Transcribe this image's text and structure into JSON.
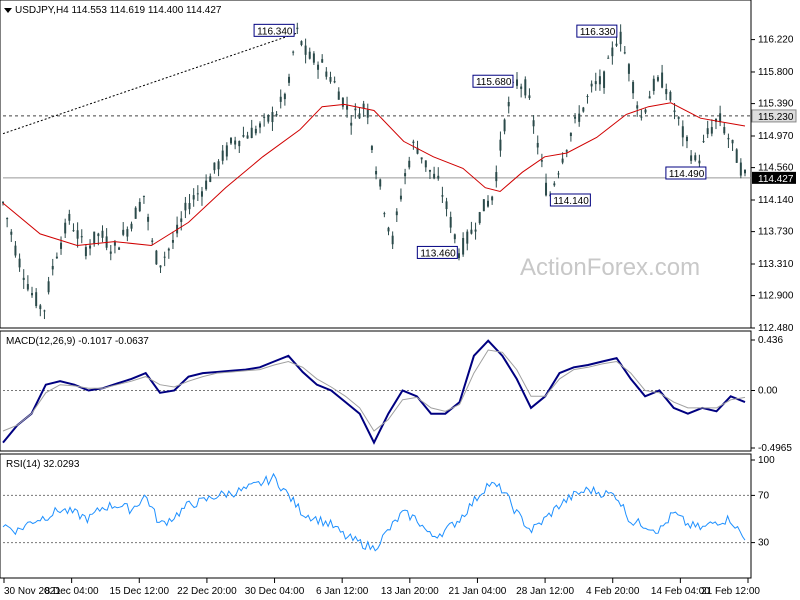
{
  "header": {
    "symbol_line": "USDJPY,H4  114.553 114.619 114.400 114.427"
  },
  "watermark": "ActionForex.com",
  "colors": {
    "candle": "#2b4a4a",
    "ma": "#d00000",
    "macd": "#000080",
    "signal": "#a0a0a0",
    "rsi": "#1e90ff",
    "dash": "#444444",
    "grid_label_box": "#000080"
  },
  "chart_data": [
    {
      "type": "candlestick",
      "panel": "price",
      "y_ticks": [
        116.22,
        115.8,
        115.39,
        114.97,
        114.56,
        114.14,
        113.73,
        113.31,
        112.9,
        112.48
      ],
      "ylim": [
        112.48,
        116.5
      ],
      "current_price_label": "114.427",
      "level_label": "115.230",
      "level": 115.23,
      "current_price": 114.427,
      "price_path": [
        {
          "t": 0.0,
          "p": 114.1
        },
        {
          "t": 0.02,
          "p": 113.4
        },
        {
          "t": 0.04,
          "p": 112.9
        },
        {
          "t": 0.055,
          "p": 112.7
        },
        {
          "t": 0.07,
          "p": 113.4
        },
        {
          "t": 0.09,
          "p": 113.9
        },
        {
          "t": 0.11,
          "p": 113.5
        },
        {
          "t": 0.13,
          "p": 113.7
        },
        {
          "t": 0.15,
          "p": 113.5
        },
        {
          "t": 0.17,
          "p": 113.8
        },
        {
          "t": 0.19,
          "p": 114.2
        },
        {
          "t": 0.2,
          "p": 113.6
        },
        {
          "t": 0.21,
          "p": 113.3
        },
        {
          "t": 0.23,
          "p": 113.6
        },
        {
          "t": 0.25,
          "p": 114.1
        },
        {
          "t": 0.27,
          "p": 114.3
        },
        {
          "t": 0.29,
          "p": 114.6
        },
        {
          "t": 0.31,
          "p": 114.9
        },
        {
          "t": 0.33,
          "p": 115.0
        },
        {
          "t": 0.35,
          "p": 115.1
        },
        {
          "t": 0.37,
          "p": 115.3
        },
        {
          "t": 0.385,
          "p": 115.6
        },
        {
          "t": 0.395,
          "p": 116.34
        },
        {
          "t": 0.41,
          "p": 116.0
        },
        {
          "t": 0.43,
          "p": 115.9
        },
        {
          "t": 0.45,
          "p": 115.6
        },
        {
          "t": 0.47,
          "p": 115.2
        },
        {
          "t": 0.49,
          "p": 115.4
        },
        {
          "t": 0.5,
          "p": 114.7
        },
        {
          "t": 0.515,
          "p": 114.0
        },
        {
          "t": 0.525,
          "p": 113.6
        },
        {
          "t": 0.54,
          "p": 114.4
        },
        {
          "t": 0.555,
          "p": 114.9
        },
        {
          "t": 0.57,
          "p": 114.6
        },
        {
          "t": 0.59,
          "p": 114.3
        },
        {
          "t": 0.605,
          "p": 113.8
        },
        {
          "t": 0.615,
          "p": 113.46
        },
        {
          "t": 0.63,
          "p": 113.7
        },
        {
          "t": 0.645,
          "p": 114.0
        },
        {
          "t": 0.66,
          "p": 114.2
        },
        {
          "t": 0.675,
          "p": 115.1
        },
        {
          "t": 0.69,
          "p": 115.68
        },
        {
          "t": 0.705,
          "p": 115.6
        },
        {
          "t": 0.72,
          "p": 114.9
        },
        {
          "t": 0.735,
          "p": 114.14
        },
        {
          "t": 0.75,
          "p": 114.6
        },
        {
          "t": 0.765,
          "p": 115.0
        },
        {
          "t": 0.78,
          "p": 115.3
        },
        {
          "t": 0.795,
          "p": 115.6
        },
        {
          "t": 0.81,
          "p": 115.7
        },
        {
          "t": 0.83,
          "p": 116.33
        },
        {
          "t": 0.845,
          "p": 115.8
        },
        {
          "t": 0.86,
          "p": 115.2
        },
        {
          "t": 0.875,
          "p": 115.6
        },
        {
          "t": 0.89,
          "p": 115.7
        },
        {
          "t": 0.905,
          "p": 115.3
        },
        {
          "t": 0.92,
          "p": 114.9
        },
        {
          "t": 0.935,
          "p": 114.6
        },
        {
          "t": 0.95,
          "p": 115.0
        },
        {
          "t": 0.965,
          "p": 115.2
        },
        {
          "t": 0.98,
          "p": 114.9
        },
        {
          "t": 1.0,
          "p": 114.43
        }
      ],
      "ma_path": [
        {
          "t": 0.0,
          "p": 114.1
        },
        {
          "t": 0.05,
          "p": 113.7
        },
        {
          "t": 0.1,
          "p": 113.55
        },
        {
          "t": 0.15,
          "p": 113.6
        },
        {
          "t": 0.2,
          "p": 113.55
        },
        {
          "t": 0.25,
          "p": 113.85
        },
        {
          "t": 0.3,
          "p": 114.3
        },
        {
          "t": 0.35,
          "p": 114.7
        },
        {
          "t": 0.4,
          "p": 115.05
        },
        {
          "t": 0.43,
          "p": 115.35
        },
        {
          "t": 0.46,
          "p": 115.38
        },
        {
          "t": 0.5,
          "p": 115.3
        },
        {
          "t": 0.54,
          "p": 114.9
        },
        {
          "t": 0.58,
          "p": 114.7
        },
        {
          "t": 0.62,
          "p": 114.55
        },
        {
          "t": 0.65,
          "p": 114.3
        },
        {
          "t": 0.67,
          "p": 114.25
        },
        {
          "t": 0.7,
          "p": 114.5
        },
        {
          "t": 0.73,
          "p": 114.7
        },
        {
          "t": 0.76,
          "p": 114.75
        },
        {
          "t": 0.8,
          "p": 114.95
        },
        {
          "t": 0.84,
          "p": 115.25
        },
        {
          "t": 0.87,
          "p": 115.35
        },
        {
          "t": 0.9,
          "p": 115.4
        },
        {
          "t": 0.94,
          "p": 115.2
        },
        {
          "t": 0.97,
          "p": 115.15
        },
        {
          "t": 1.0,
          "p": 115.1
        }
      ],
      "annotations": [
        {
          "label": "116.340",
          "t": 0.395,
          "p": 116.34,
          "side": "left"
        },
        {
          "label": "115.680",
          "t": 0.69,
          "p": 115.68,
          "side": "left"
        },
        {
          "label": "116.330",
          "t": 0.83,
          "p": 116.33,
          "side": "left"
        },
        {
          "label": "113.460",
          "t": 0.615,
          "p": 113.46,
          "side": "left"
        },
        {
          "label": "114.140",
          "t": 0.735,
          "p": 114.14,
          "side": "right"
        },
        {
          "label": "114.490",
          "t": 0.95,
          "p": 114.49,
          "side": "left"
        }
      ],
      "x_ticks": [
        "30 Nov 2021",
        "8 Dec 04:00",
        "15 Dec 12:00",
        "22 Dec 20:00",
        "30 Dec 04:00",
        "6 Jan 12:00",
        "13 Jan 20:00",
        "21 Jan 04:00",
        "28 Jan 12:00",
        "4 Feb 20:00",
        "14 Feb 04:00",
        "21 Feb 12:00"
      ]
    },
    {
      "type": "line",
      "panel": "macd",
      "title": "MACD(12,26,9) -0.1017 -0.0637",
      "y_ticks": [
        "0.436",
        "0.00",
        "-0.4965"
      ],
      "ylim": [
        -0.4965,
        0.436
      ],
      "series": [
        {
          "name": "MACD",
          "values": [
            -0.45,
            -0.3,
            -0.2,
            0.05,
            0.08,
            0.05,
            0.0,
            0.02,
            0.06,
            0.1,
            0.15,
            -0.02,
            0.0,
            0.12,
            0.15,
            0.16,
            0.17,
            0.18,
            0.2,
            0.25,
            0.3,
            0.16,
            0.05,
            0.0,
            -0.1,
            -0.2,
            -0.45,
            -0.2,
            0.0,
            -0.05,
            -0.2,
            -0.2,
            -0.1,
            0.3,
            0.43,
            0.3,
            0.1,
            -0.15,
            -0.05,
            0.15,
            0.2,
            0.22,
            0.25,
            0.28,
            0.1,
            -0.05,
            0.0,
            -0.15,
            -0.2,
            -0.15,
            -0.18,
            -0.05,
            -0.1
          ]
        },
        {
          "name": "Signal",
          "values": [
            -0.35,
            -0.3,
            -0.2,
            -0.02,
            0.05,
            0.04,
            0.02,
            0.02,
            0.05,
            0.08,
            0.12,
            0.05,
            0.03,
            0.08,
            0.12,
            0.15,
            0.16,
            0.17,
            0.18,
            0.22,
            0.25,
            0.2,
            0.1,
            0.03,
            -0.05,
            -0.15,
            -0.35,
            -0.25,
            -0.08,
            -0.06,
            -0.15,
            -0.18,
            -0.12,
            0.15,
            0.35,
            0.33,
            0.18,
            -0.05,
            -0.05,
            0.1,
            0.18,
            0.2,
            0.23,
            0.25,
            0.15,
            0.0,
            -0.02,
            -0.1,
            -0.15,
            -0.15,
            -0.15,
            -0.08,
            -0.06
          ]
        }
      ]
    },
    {
      "type": "line",
      "panel": "rsi",
      "title": "RSI(14) 32.0293",
      "y_ticks": [
        "100",
        "70",
        "30"
      ],
      "ylim": [
        0,
        100
      ],
      "levels": [
        70,
        30
      ],
      "series": [
        {
          "name": "RSI",
          "values": [
            45,
            40,
            48,
            52,
            58,
            55,
            50,
            60,
            62,
            58,
            70,
            45,
            52,
            62,
            65,
            70,
            72,
            75,
            80,
            85,
            70,
            55,
            50,
            45,
            35,
            30,
            25,
            40,
            55,
            50,
            35,
            40,
            50,
            65,
            80,
            75,
            55,
            40,
            50,
            62,
            70,
            75,
            72,
            70,
            48,
            45,
            40,
            55,
            45,
            42,
            48,
            50,
            32
          ]
        }
      ]
    }
  ]
}
